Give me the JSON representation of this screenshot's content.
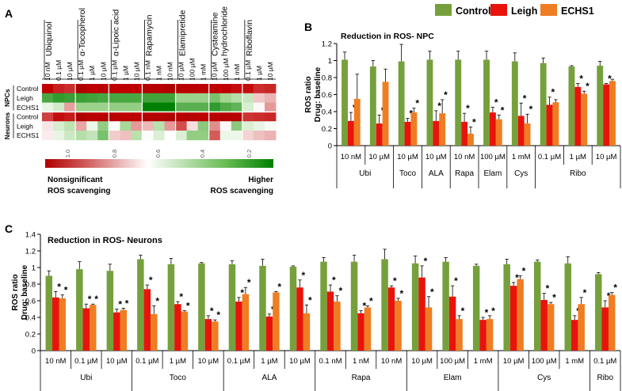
{
  "figure_panels": {
    "a": "A",
    "b": "B",
    "c": "C"
  },
  "legend": {
    "entries": [
      {
        "name": "Control",
        "color": "#76a03c"
      },
      {
        "name": "Leigh",
        "color": "#e8140c"
      },
      {
        "name": "ECHS1",
        "color": "#ef7d22"
      }
    ]
  },
  "chart_data": [
    {
      "type": "heatmap",
      "panel": "A",
      "columns": [
        {
          "drug": "Ubiquinol",
          "doses": [
            "10 nM",
            "0.1 µM",
            "10 µM"
          ]
        },
        {
          "drug": "α-Tocopherol",
          "doses": [
            "0.1 µM",
            "1 µM",
            "10 µM"
          ]
        },
        {
          "drug": "α-Lipoic acid",
          "doses": [
            "0.1 µM",
            "1 µM",
            "10 µM"
          ]
        },
        {
          "drug": "Rapamycin",
          "doses": [
            "0.1 nM",
            "1 nM",
            "10 nM"
          ]
        },
        {
          "drug": "Elamipretide",
          "doses": [
            "10 µM",
            "100 µM",
            "1 mM"
          ]
        },
        {
          "drug": "Cysteamine hydrochloride",
          "doses": [
            "10 µM",
            "100 µM",
            "1 mM"
          ]
        },
        {
          "drug": "Riboflavin",
          "doses": [
            "0.1 µM",
            "1 µM",
            "10 µM"
          ]
        }
      ],
      "row_groups": [
        {
          "group": "NPCs",
          "rows": [
            "Control",
            "Leigh",
            "ECHS1"
          ]
        },
        {
          "group": "Neurons",
          "rows": [
            "Control",
            "Leigh",
            "ECHS1"
          ]
        }
      ],
      "values": [
        [
          1.0,
          0.95,
          0.93,
          1.1,
          1.03,
          1.02,
          1.01,
          1.01,
          1.0,
          1.07,
          1.06,
          1.1,
          1.04,
          1.04,
          1.02,
          1.02,
          1.0,
          0.98,
          0.98,
          0.93,
          0.94
        ],
        [
          0.29,
          0.26,
          0.27,
          0.27,
          0.28,
          0.29,
          0.29,
          0.29,
          0.29,
          0.28,
          0.28,
          0.28,
          0.39,
          0.39,
          0.39,
          0.35,
          0.4,
          0.44,
          0.48,
          0.69,
          0.72
        ],
        [
          0.55,
          0.5,
          0.75,
          0.39,
          0.39,
          0.39,
          0.38,
          0.38,
          0.38,
          0.14,
          0.14,
          0.14,
          0.31,
          0.31,
          0.31,
          0.26,
          0.3,
          0.32,
          0.51,
          0.61,
          0.76
        ],
        [
          0.9,
          0.98,
          0.96,
          1.1,
          1.04,
          1.05,
          1.04,
          1.02,
          1.01,
          1.07,
          1.07,
          1.1,
          1.05,
          1.07,
          1.02,
          1.04,
          1.07,
          1.05,
          0.92,
          0.93,
          0.94
        ],
        [
          0.64,
          0.51,
          0.46,
          0.74,
          0.56,
          0.38,
          0.59,
          0.41,
          0.76,
          0.71,
          0.45,
          0.76,
          0.88,
          0.65,
          0.37,
          0.78,
          0.61,
          0.37,
          0.52,
          0.55,
          0.58
        ],
        [
          0.63,
          0.55,
          0.49,
          0.44,
          0.47,
          0.35,
          0.68,
          0.7,
          0.45,
          0.59,
          0.52,
          0.6,
          0.52,
          0.38,
          0.38,
          0.86,
          0.56,
          0.56,
          0.67,
          0.7,
          0.72
        ]
      ],
      "scale": {
        "ticks": [
          1.0,
          0.8,
          0.6,
          0.4,
          0.2
        ],
        "tick_labels": [
          "1.0",
          "0.8",
          "0.6",
          "0.4",
          "0.2"
        ]
      },
      "low_label": [
        "Nonsignificant",
        "ROS scavenging"
      ],
      "high_label": [
        "Higher",
        "ROS scavenging"
      ]
    },
    {
      "type": "bar",
      "panel": "B",
      "title": "Reduction in ROS- NPC",
      "ylabel": "ROS ratio Drug: baseline",
      "ylabel_lines": [
        "ROS ratio",
        "Drug: baseline"
      ],
      "ylim": [
        0,
        1.2
      ],
      "yticks": [
        0,
        0.2,
        0.4,
        0.6,
        0.8,
        1.0,
        1.2
      ],
      "ytick_labels": [
        "0",
        "0.2",
        "0.4",
        "0.6",
        "0.8",
        "1",
        "1.2"
      ],
      "categories": [
        "10 nM",
        "10 µM",
        "10 µM",
        "10 µM",
        "10 nM",
        "100 µM",
        "1 mM",
        "0.1 µM",
        "1 µM",
        "10 µM"
      ],
      "groups": [
        {
          "label": "Ubi",
          "span": 2
        },
        {
          "label": "Toco",
          "span": 1
        },
        {
          "label": "ALA",
          "span": 1
        },
        {
          "label": "Rapa",
          "span": 1
        },
        {
          "label": "Elam",
          "span": 1
        },
        {
          "label": "Cys",
          "span": 1
        },
        {
          "label": "Ribo",
          "span": 3
        }
      ],
      "series": [
        {
          "name": "Control",
          "values": [
            1.01,
            0.93,
            0.99,
            1.01,
            1.01,
            1.01,
            0.99,
            0.97,
            0.93,
            0.94
          ],
          "errors": [
            0.09,
            0.07,
            0.2,
            0.1,
            0.1,
            0.1,
            0.1,
            0.06,
            0.01,
            0.05
          ],
          "significant": [
            false,
            false,
            false,
            false,
            false,
            false,
            false,
            false,
            false,
            false
          ]
        },
        {
          "name": "Leigh",
          "values": [
            0.29,
            0.26,
            0.28,
            0.29,
            0.28,
            0.39,
            0.35,
            0.48,
            0.69,
            0.72
          ],
          "errors": [
            0.1,
            0.1,
            0.04,
            0.12,
            0.1,
            0.06,
            0.15,
            0.09,
            0.04,
            0.01
          ],
          "significant": [
            true,
            true,
            true,
            true,
            true,
            true,
            true,
            true,
            true,
            true
          ]
        },
        {
          "name": "ECHS1",
          "values": [
            0.55,
            0.75,
            0.39,
            0.38,
            0.14,
            0.31,
            0.26,
            0.51,
            0.61,
            0.76
          ],
          "errors": [
            0.29,
            0.15,
            0.05,
            0.16,
            0.08,
            0.05,
            0.11,
            0.03,
            0.03,
            0.02
          ],
          "significant": [
            false,
            false,
            true,
            true,
            true,
            true,
            true,
            false,
            true,
            false
          ]
        }
      ]
    },
    {
      "type": "bar",
      "panel": "C",
      "title": "Reduction in ROS- Neurons",
      "ylabel": "ROS ratio Drug: baseline",
      "ylabel_lines": [
        "ROS ratio",
        "Drug: baseline"
      ],
      "ylim": [
        0,
        1.4
      ],
      "yticks": [
        0,
        0.2,
        0.4,
        0.6,
        0.8,
        1.0,
        1.2,
        1.4
      ],
      "ytick_labels": [
        "0",
        "0.2",
        "0.4",
        "0.6",
        "0.8",
        "1",
        "1.2",
        "1.4"
      ],
      "categories": [
        "10 nM",
        "0.1 µM",
        "10 µM",
        "0.1 µM",
        "1 µM",
        "10 µM",
        "0.1 µM",
        "1 µM",
        "10 µM",
        "0.1 nM",
        "1 nM",
        "10 nM",
        "10 µM",
        "100 µM",
        "1 mM",
        "10 µM",
        "100 µM",
        "1 mM",
        "0.1 µM"
      ],
      "groups": [
        {
          "label": "Ubi",
          "span": 3
        },
        {
          "label": "Toco",
          "span": 3
        },
        {
          "label": "ALA",
          "span": 3
        },
        {
          "label": "Rapa",
          "span": 3
        },
        {
          "label": "Elam",
          "span": 3
        },
        {
          "label": "Cys",
          "span": 3
        },
        {
          "label": "Ribo",
          "span": 1
        }
      ],
      "series": [
        {
          "name": "Control",
          "values": [
            0.9,
            0.98,
            0.96,
            1.1,
            1.04,
            1.05,
            1.04,
            1.02,
            1.01,
            1.07,
            1.07,
            1.1,
            1.05,
            1.07,
            1.02,
            1.04,
            1.07,
            1.05,
            0.92
          ],
          "errors": [
            0.06,
            0.09,
            0.08,
            0.05,
            0.07,
            0.01,
            0.04,
            0.08,
            0.01,
            0.05,
            0.08,
            0.12,
            0.09,
            0.05,
            0.02,
            0.06,
            0.02,
            0.08,
            0.02
          ],
          "significant": [
            false,
            false,
            false,
            false,
            false,
            false,
            false,
            false,
            false,
            false,
            false,
            false,
            false,
            false,
            false,
            false,
            false,
            false,
            false
          ]
        },
        {
          "name": "Leigh",
          "values": [
            0.64,
            0.51,
            0.46,
            0.74,
            0.56,
            0.38,
            0.59,
            0.41,
            0.76,
            0.71,
            0.45,
            0.76,
            0.88,
            0.65,
            0.37,
            0.78,
            0.61,
            0.37,
            0.52
          ],
          "errors": [
            0.07,
            0.05,
            0.04,
            0.05,
            0.03,
            0.04,
            0.05,
            0.03,
            0.09,
            0.08,
            0.03,
            0.02,
            0.14,
            0.13,
            0.03,
            0.04,
            0.08,
            0.05,
            0.08
          ],
          "significant": [
            true,
            true,
            true,
            true,
            true,
            true,
            true,
            true,
            true,
            true,
            true,
            true,
            true,
            true,
            true,
            true,
            true,
            true,
            true
          ]
        },
        {
          "name": "ECHS1",
          "values": [
            0.63,
            0.55,
            0.49,
            0.44,
            0.47,
            0.35,
            0.68,
            0.7,
            0.45,
            0.59,
            0.52,
            0.6,
            0.52,
            0.38,
            0.38,
            0.86,
            0.56,
            0.56,
            0.67
          ],
          "errors": [
            0.04,
            0.01,
            0.02,
            0.1,
            0.01,
            0.02,
            0.08,
            0.01,
            0.1,
            0.07,
            0.02,
            0.03,
            0.13,
            0.04,
            0.04,
            0.04,
            0.02,
            0.08,
            0.03
          ],
          "significant": [
            true,
            true,
            true,
            true,
            true,
            true,
            true,
            true,
            true,
            true,
            true,
            true,
            true,
            true,
            true,
            true,
            true,
            true,
            true
          ]
        }
      ]
    }
  ]
}
